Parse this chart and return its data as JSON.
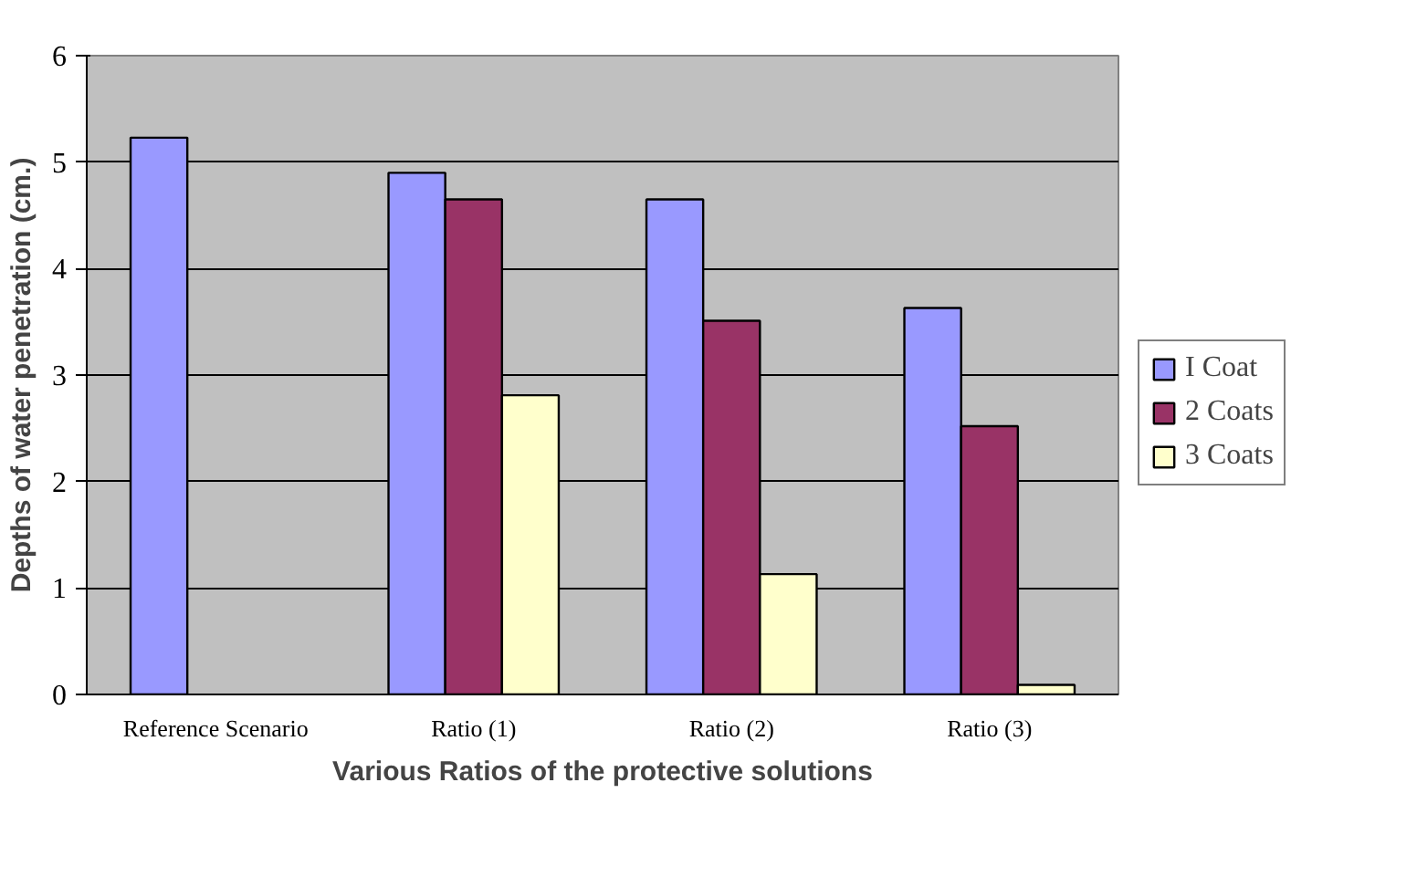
{
  "chart_data": {
    "type": "bar",
    "xlabel": "Various Ratios of the protective solutions",
    "ylabel": "Depths of water penetration (cm.)",
    "categories": [
      "Reference Scenario",
      "Ratio (1)",
      "Ratio (2)",
      "Ratio (3)"
    ],
    "series": [
      {
        "name": "I Coat",
        "color": "#9999ff",
        "values": [
          5.23,
          4.9,
          4.65,
          3.63
        ]
      },
      {
        "name": "2 Coats",
        "color": "#993366",
        "values": [
          null,
          4.65,
          3.51,
          2.52
        ]
      },
      {
        "name": "3 Coats",
        "color": "#ffffcc",
        "values": [
          null,
          2.81,
          1.13,
          0.09
        ]
      }
    ],
    "ylim": [
      0,
      6
    ],
    "yticks": [
      0,
      1,
      2,
      3,
      4,
      5,
      6
    ],
    "grid": "y",
    "legend": "right"
  }
}
